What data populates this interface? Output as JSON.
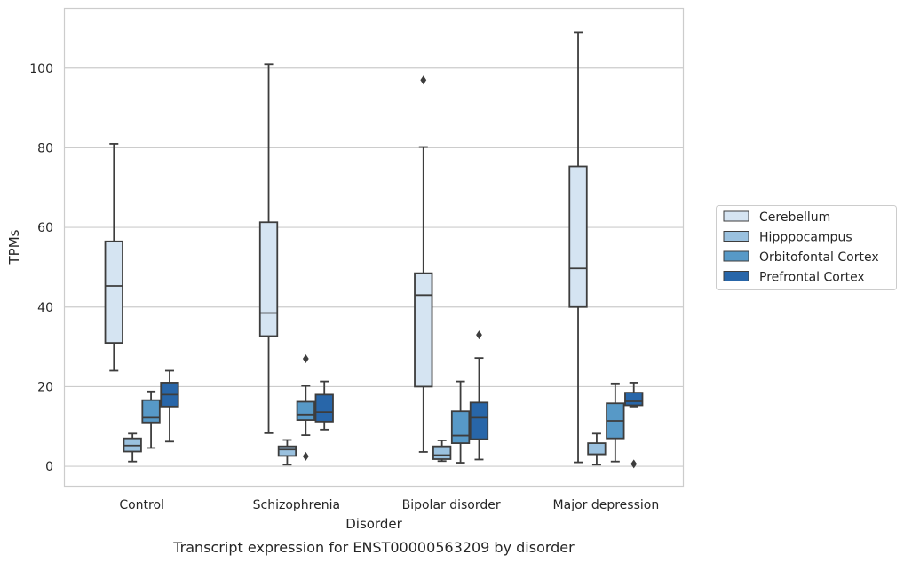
{
  "chart_data": {
    "type": "box",
    "xlabel": "Disorder",
    "ylabel": "TPMs",
    "caption": "Transcript expression for ENST00000563209 by disorder",
    "ylim": [
      -5,
      115
    ],
    "yticks": [
      0,
      20,
      40,
      60,
      80,
      100
    ],
    "grid": "horizontal",
    "legend_position": "right",
    "categories": [
      "Control",
      "Schizophrenia",
      "Bipolar disorder",
      "Major depression"
    ],
    "series": [
      {
        "name": "Cerebellum",
        "color": "#d5e4f2",
        "boxes": [
          {
            "min": 24,
            "q1": 31,
            "median": 45.3,
            "q3": 56.5,
            "max": 81,
            "outliers": []
          },
          {
            "min": 8.3,
            "q1": 32.7,
            "median": 38.5,
            "q3": 61.3,
            "max": 101,
            "outliers": []
          },
          {
            "min": 3.6,
            "q1": 20,
            "median": 43,
            "q3": 48.5,
            "max": 80.2,
            "outliers": [
              97
            ]
          },
          {
            "min": 1,
            "q1": 40,
            "median": 49.7,
            "q3": 75.3,
            "max": 109,
            "outliers": []
          }
        ]
      },
      {
        "name": "Hipppocampus",
        "color": "#9ac1df",
        "boxes": [
          {
            "min": 1.2,
            "q1": 3.7,
            "median": 5.2,
            "q3": 7,
            "max": 8.2,
            "outliers": []
          },
          {
            "min": 0.4,
            "q1": 2.6,
            "median": 4.2,
            "q3": 5,
            "max": 6.6,
            "outliers": []
          },
          {
            "min": 1.3,
            "q1": 1.8,
            "median": 2.8,
            "q3": 5,
            "max": 6.5,
            "outliers": []
          },
          {
            "min": 0.4,
            "q1": 3,
            "median": 3,
            "q3": 5.8,
            "max": 8.2,
            "outliers": []
          }
        ]
      },
      {
        "name": "Orbitofontal Cortex",
        "color": "#5799c7",
        "boxes": [
          {
            "min": 4.6,
            "q1": 11,
            "median": 12.2,
            "q3": 16.6,
            "max": 18.8,
            "outliers": []
          },
          {
            "min": 7.8,
            "q1": 11.6,
            "median": 13,
            "q3": 16.2,
            "max": 20.2,
            "outliers": [
              27,
              2.5
            ]
          },
          {
            "min": 0.9,
            "q1": 5.8,
            "median": 7.7,
            "q3": 13.8,
            "max": 21.3,
            "outliers": []
          },
          {
            "min": 1.2,
            "q1": 7,
            "median": 11.4,
            "q3": 15.8,
            "max": 20.8,
            "outliers": []
          }
        ]
      },
      {
        "name": "Prefrontal Cortex",
        "color": "#2866a9",
        "boxes": [
          {
            "min": 6.2,
            "q1": 15,
            "median": 18,
            "q3": 21,
            "max": 24,
            "outliers": []
          },
          {
            "min": 9.2,
            "q1": 11.2,
            "median": 13.6,
            "q3": 18,
            "max": 21.3,
            "outliers": []
          },
          {
            "min": 1.7,
            "q1": 6.8,
            "median": 12.2,
            "q3": 16,
            "max": 27.2,
            "outliers": [
              33
            ]
          },
          {
            "min": 15,
            "q1": 15.3,
            "median": 16.3,
            "q3": 18.5,
            "max": 21,
            "outliers": [
              0.6
            ]
          }
        ]
      }
    ]
  }
}
